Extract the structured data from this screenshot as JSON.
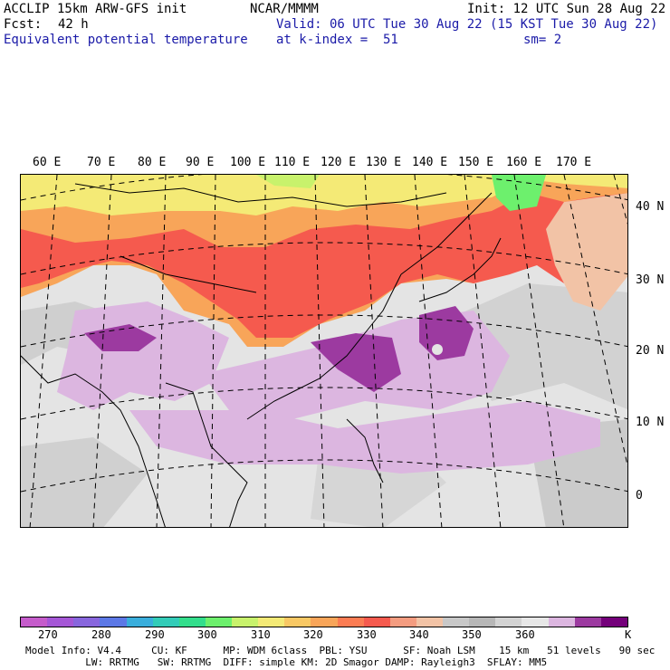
{
  "header": {
    "model": "ACCLIP 15km ARW-GFS init",
    "forecast_label": "Fcst:",
    "forecast_hours": "42 h",
    "field_name": "Equivalent potential temperature",
    "center": "NCAR/MMMM",
    "valid": "Valid: 06 UTC Tue 30 Aug 22 (15 KST Tue 30 Aug 22)",
    "level": "at k-index =  51",
    "init": "Init: 12 UTC Sun 28 Aug 22",
    "smoothing": "sm= 2"
  },
  "map": {
    "lon_labels": [
      "60 E",
      "70 E",
      "80 E",
      "90 E",
      "100 E",
      "110 E",
      "120 E",
      "130 E",
      "140 E",
      "150 E",
      "160 E",
      "170 E"
    ],
    "lat_labels": [
      "40 N",
      "30 N",
      "20 N",
      "10 N",
      "0"
    ]
  },
  "colorbar": {
    "colors": [
      "#c55ccb",
      "#a557d6",
      "#8866dd",
      "#5c78e6",
      "#3aaedc",
      "#33ccb8",
      "#33de8c",
      "#6df06d",
      "#c8f26c",
      "#f4ea76",
      "#f8c864",
      "#f8a559",
      "#fb7c53",
      "#f55a4e",
      "#f49c80",
      "#f2c3a6",
      "#c8c8c8",
      "#b7b7b7",
      "#d3d3d3",
      "#e7e7e7",
      "#dcb6e0",
      "#9c3aa0",
      "#74007a"
    ],
    "labels": [
      "270",
      "280",
      "290",
      "300",
      "310",
      "320",
      "330",
      "340",
      "350",
      "360",
      "K"
    ]
  },
  "footer": {
    "line1": "Model Info: V4.4     CU: KF      MP: WDM 6class  PBL: YSU      SF: Noah LSM    15 km   51 levels   90 sec",
    "line2": "          LW: RRTMG   SW: RRTMG  DIFF: simple KM: 2D Smagor DAMP: Rayleigh3  SFLAY: MM5"
  }
}
